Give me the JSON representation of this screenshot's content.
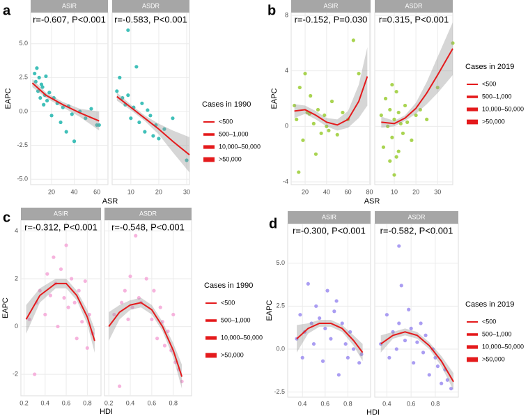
{
  "chart_data": [
    {
      "type": "scatter",
      "panel_label": "a",
      "xlabel": "ASR",
      "ylabel": "EAPC",
      "color": "#1fb5ad",
      "trend_color": "#e41a1c",
      "ylim": [
        -5.4,
        7.3
      ],
      "yticks": [
        {
          "value": 5,
          "label": "5.0"
        },
        2.5,
        {
          "value": 0,
          "label": "0.0"
        },
        -2.5,
        {
          "value": -5,
          "label": "-5.0"
        }
      ],
      "legend_title": "Cases in 1990",
      "legend_items": [
        "<500",
        "500–1,000",
        "10,000–50,000",
        ">50,000"
      ],
      "facets": [
        {
          "strip": "ASIR",
          "annotation": "r=-0.607, P<0.001",
          "xlim": [
            1.5,
            69.8
          ],
          "xticks": [
            20,
            40,
            60
          ],
          "points": {
            "x": [
              5,
              6,
              7,
              8,
              9,
              10,
              11,
              12,
              13,
              14,
              15,
              16,
              18,
              20,
              22,
              25,
              28,
              30,
              33,
              35,
              38,
              40,
              45,
              50,
              55,
              60,
              62
            ],
            "y": [
              2.8,
              2.2,
              3.2,
              1.5,
              2.5,
              1.0,
              2.0,
              1.8,
              0.5,
              1.2,
              2.6,
              0.8,
              1.4,
              -0.3,
              1.0,
              0.6,
              -0.8,
              0.3,
              -1.5,
              0.4,
              -0.2,
              -2.2,
              0.0,
              -0.5,
              0.2,
              -1.0,
              -1.0
            ]
          },
          "trend": {
            "x": [
              3,
              15,
              30,
              45,
              62
            ],
            "y": [
              2.1,
              1.2,
              0.5,
              -0.1,
              -0.7
            ],
            "lower": [
              1.8,
              1.0,
              0.3,
              -0.4,
              -1.4
            ],
            "upper": [
              2.4,
              1.4,
              0.7,
              0.2,
              0.0
            ]
          }
        },
        {
          "strip": "ASDR",
          "annotation": "r=-0.583, P<0.001",
          "xlim": [
            3.3,
            31
          ],
          "xticks": [
            10,
            20,
            30
          ],
          "points": {
            "x": [
              5,
              6,
              7,
              8,
              9,
              10,
              11,
              12,
              13,
              14,
              15,
              16,
              17,
              18,
              19,
              20,
              22,
              25,
              30,
              9
            ],
            "y": [
              1.5,
              2.5,
              1.0,
              0.5,
              1.2,
              -0.5,
              0.3,
              3.3,
              -0.8,
              0.6,
              -1.5,
              0.1,
              -0.3,
              -1.8,
              -1.0,
              -2.0,
              -1.3,
              -0.5,
              -3.6,
              6.0
            ]
          },
          "trend": {
            "x": [
              5,
              10,
              15,
              20,
              25,
              31
            ],
            "y": [
              1.1,
              0.3,
              -0.5,
              -1.3,
              -2.2,
              -3.2
            ],
            "lower": [
              0.8,
              0.1,
              -0.7,
              -1.7,
              -3.0,
              -4.5
            ],
            "upper": [
              1.4,
              0.5,
              -0.3,
              -0.9,
              -1.4,
              -1.9
            ]
          }
        }
      ]
    },
    {
      "type": "scatter",
      "panel_label": "b",
      "xlabel": "ASR",
      "ylabel": "EAPC",
      "color": "#9acd32",
      "trend_color": "#e41a1c",
      "ylim": [
        -4.2,
        8.2
      ],
      "yticks": [
        8,
        4,
        0,
        -4
      ],
      "legend_title": "Cases in 2019",
      "legend_items": [
        "<500",
        "500–1,000",
        "10,000–50,000",
        ">50,000"
      ],
      "facets": [
        {
          "strip": "ASIR",
          "annotation": "r=-0.152, P=0.030",
          "xlim": [
            7,
            81
          ],
          "xticks": [
            20,
            40,
            60,
            80
          ],
          "points": {
            "x": [
              10,
              12,
              15,
              18,
              20,
              22,
              25,
              28,
              30,
              32,
              35,
              38,
              40,
              42,
              45,
              50,
              55,
              60,
              65,
              70,
              14,
              24
            ],
            "y": [
              1.5,
              0.5,
              2.8,
              -1.0,
              3.8,
              1.0,
              2.2,
              0.2,
              -2.0,
              1.2,
              -0.5,
              0.8,
              0.0,
              -0.3,
              1.8,
              -0.6,
              1.0,
              0.5,
              6.2,
              3.8,
              -3.3,
              0.9
            ]
          },
          "trend": {
            "x": [
              10,
              20,
              30,
              40,
              50,
              60,
              70,
              78
            ],
            "y": [
              1.1,
              1.2,
              0.8,
              0.3,
              0.1,
              0.5,
              1.8,
              3.6
            ],
            "lower": [
              0.6,
              0.9,
              0.5,
              0,
              -0.3,
              -0.1,
              0.6,
              1.5
            ],
            "upper": [
              1.6,
              1.5,
              1.1,
              0.6,
              0.5,
              1.1,
              3.0,
              5.7
            ]
          }
        },
        {
          "strip": "ASDR",
          "annotation": "r=0.315, P<0.001",
          "xlim": [
            1,
            37
          ],
          "xticks": [
            10,
            20,
            30
          ],
          "points": {
            "x": [
              4,
              5,
              6,
              7,
              8,
              8,
              9,
              10,
              10,
              11,
              12,
              12,
              13,
              14,
              15,
              16,
              18,
              20,
              22,
              25,
              30,
              37,
              9,
              11
            ],
            "y": [
              0.8,
              -1.5,
              2.0,
              0.0,
              -2.5,
              1.2,
              -0.8,
              0.5,
              -3.5,
              2.5,
              -1.8,
              1.0,
              0.2,
              -0.5,
              1.5,
              0.3,
              -1.0,
              0.8,
              1.2,
              0.5,
              2.8,
              6.0,
              3.0,
              -2.2
            ]
          },
          "trend": {
            "x": [
              4,
              10,
              15,
              20,
              25,
              30,
              37
            ],
            "y": [
              0.3,
              0.2,
              0.6,
              1.3,
              2.4,
              3.7,
              5.6
            ],
            "lower": [
              -0.1,
              0.0,
              0.4,
              0.9,
              1.6,
              2.4,
              3.7
            ],
            "upper": [
              0.7,
              0.4,
              0.8,
              1.7,
              3.2,
              5.0,
              7.5
            ]
          }
        }
      ]
    },
    {
      "type": "scatter",
      "panel_label": "c",
      "xlabel": "HDI",
      "ylabel": "EAPC",
      "color": "#f4a6d7",
      "trend_color": "#e41a1c",
      "ylim": [
        -2.9,
        4.45
      ],
      "yticks": [
        4,
        2,
        0,
        -2
      ],
      "legend_title": "Cases in 1990",
      "legend_items": [
        "<500",
        "500–1,000",
        "10,000–50,000",
        ">50,000"
      ],
      "facets": [
        {
          "strip": "ASIR",
          "annotation": "r=-0.312, P<0.001",
          "xlim": [
            0.17,
            0.93
          ],
          "xticks": [
            0.2,
            0.4,
            0.6,
            0.8
          ],
          "points": {
            "x": [
              0.25,
              0.3,
              0.32,
              0.35,
              0.4,
              0.42,
              0.45,
              0.48,
              0.5,
              0.52,
              0.55,
              0.58,
              0.6,
              0.62,
              0.65,
              0.68,
              0.7,
              0.72,
              0.75,
              0.78,
              0.8,
              0.82,
              0.85
            ],
            "y": [
              0.3,
              -2.0,
              1.0,
              1.5,
              0.5,
              2.2,
              1.3,
              2.9,
              1.8,
              0.0,
              2.4,
              1.2,
              3.4,
              0.8,
              2.0,
              1.0,
              -0.5,
              1.5,
              0.2,
              1.9,
              -0.9,
              0.5,
              -0.3
            ]
          },
          "trend": {
            "x": [
              0.22,
              0.35,
              0.5,
              0.6,
              0.7,
              0.8,
              0.87
            ],
            "y": [
              0.3,
              1.3,
              1.8,
              1.8,
              1.3,
              0.4,
              -0.6
            ],
            "lower": [
              -0.3,
              1.0,
              1.6,
              1.6,
              1.1,
              0.1,
              -1.1
            ],
            "upper": [
              0.9,
              1.6,
              2.0,
              2.0,
              1.5,
              0.7,
              -0.1
            ]
          }
        },
        {
          "strip": "ASDR",
          "annotation": "r=-0.548, P<0.001",
          "xlim": [
            0.16,
            0.97
          ],
          "xticks": [
            0.2,
            0.4,
            0.6,
            0.8
          ],
          "points": {
            "x": [
              0.25,
              0.3,
              0.32,
              0.35,
              0.38,
              0.4,
              0.42,
              0.45,
              0.48,
              0.5,
              0.55,
              0.6,
              0.62,
              0.65,
              0.68,
              0.7,
              0.72,
              0.75,
              0.78,
              0.8,
              0.82,
              0.85,
              0.88
            ],
            "y": [
              0.5,
              -2.5,
              1.0,
              1.5,
              0.3,
              2.1,
              0.8,
              3.8,
              1.2,
              1.0,
              2.0,
              0.3,
              1.5,
              -0.5,
              0.8,
              0.2,
              -0.8,
              -0.2,
              -1.0,
              0.5,
              -1.5,
              -1.8,
              -2.3
            ]
          },
          "trend": {
            "x": [
              0.2,
              0.3,
              0.4,
              0.5,
              0.6,
              0.7,
              0.8,
              0.88
            ],
            "y": [
              0.0,
              0.6,
              0.9,
              1.0,
              0.7,
              0.0,
              -1.0,
              -2.1
            ],
            "lower": [
              -0.6,
              0.3,
              0.7,
              0.8,
              0.5,
              -0.2,
              -1.3,
              -2.6
            ],
            "upper": [
              0.6,
              0.9,
              1.1,
              1.2,
              0.9,
              0.2,
              -0.7,
              -1.6
            ]
          }
        }
      ]
    },
    {
      "type": "scatter",
      "panel_label": "d",
      "xlabel": "HDI",
      "ylabel": "EAPC",
      "color": "#9b8cf0",
      "trend_color": "#e41a1c",
      "ylim": [
        -2.8,
        7.3
      ],
      "yticks": [
        {
          "value": 5,
          "label": "5.0"
        },
        2.5,
        {
          "value": 0,
          "label": "0.0"
        },
        -2.5
      ],
      "legend_title": "Cases in 2019",
      "legend_items": [
        "<500",
        "500–1,000",
        "10,000–50,000",
        ">50,000"
      ],
      "facets": [
        {
          "strip": "ASIR",
          "annotation": "r=-0.300, P<0.001",
          "xlim": [
            0.27,
            1.0
          ],
          "xticks": [
            0.4,
            0.6,
            0.8
          ],
          "points": {
            "x": [
              0.35,
              0.38,
              0.4,
              0.42,
              0.45,
              0.48,
              0.5,
              0.52,
              0.55,
              0.58,
              0.6,
              0.62,
              0.65,
              0.68,
              0.7,
              0.72,
              0.75,
              0.78,
              0.8,
              0.82,
              0.85,
              0.9,
              0.92
            ],
            "y": [
              0.6,
              2.0,
              -0.5,
              1.0,
              3.8,
              1.5,
              0.3,
              2.5,
              1.8,
              -0.7,
              1.2,
              3.4,
              0.6,
              2.2,
              2.8,
              -1.5,
              1.5,
              0.3,
              -0.5,
              1.0,
              0.0,
              -0.8,
              -0.3
            ]
          },
          "trend": {
            "x": [
              0.35,
              0.45,
              0.55,
              0.65,
              0.75,
              0.85,
              0.93
            ],
            "y": [
              0.6,
              1.2,
              1.5,
              1.5,
              1.2,
              0.5,
              -0.2
            ],
            "lower": [
              -0.2,
              0.9,
              1.3,
              1.3,
              1.0,
              0.2,
              -0.7
            ],
            "upper": [
              1.4,
              1.5,
              1.7,
              1.7,
              1.4,
              0.8,
              0.3
            ]
          }
        },
        {
          "strip": "ASDR",
          "annotation": "r=-0.582, P<0.001",
          "xlim": [
            0.3,
            0.99
          ],
          "xticks": [
            0.4,
            0.6,
            0.8
          ],
          "points": {
            "x": [
              0.35,
              0.4,
              0.42,
              0.45,
              0.48,
              0.5,
              0.52,
              0.55,
              0.58,
              0.6,
              0.62,
              0.65,
              0.68,
              0.7,
              0.72,
              0.75,
              0.78,
              0.8,
              0.82,
              0.85,
              0.88,
              0.9,
              0.93,
              0.5
            ],
            "y": [
              0.3,
              2.0,
              -0.5,
              1.0,
              0.0,
              1.5,
              3.7,
              0.5,
              2.3,
              1.2,
              -0.8,
              0.4,
              1.5,
              -0.2,
              0.8,
              -1.5,
              0.0,
              -0.5,
              -1.0,
              -2.0,
              -1.2,
              -1.8,
              -2.3,
              6.0
            ]
          },
          "trend": {
            "x": [
              0.35,
              0.45,
              0.55,
              0.65,
              0.75,
              0.85,
              0.95
            ],
            "y": [
              0.3,
              0.8,
              1.0,
              0.8,
              0.2,
              -0.7,
              -1.9
            ],
            "lower": [
              -0.2,
              0.6,
              0.8,
              0.6,
              0.0,
              -1.0,
              -2.4
            ],
            "upper": [
              0.8,
              1.0,
              1.2,
              1.0,
              0.4,
              -0.4,
              -1.4
            ]
          }
        }
      ]
    }
  ]
}
